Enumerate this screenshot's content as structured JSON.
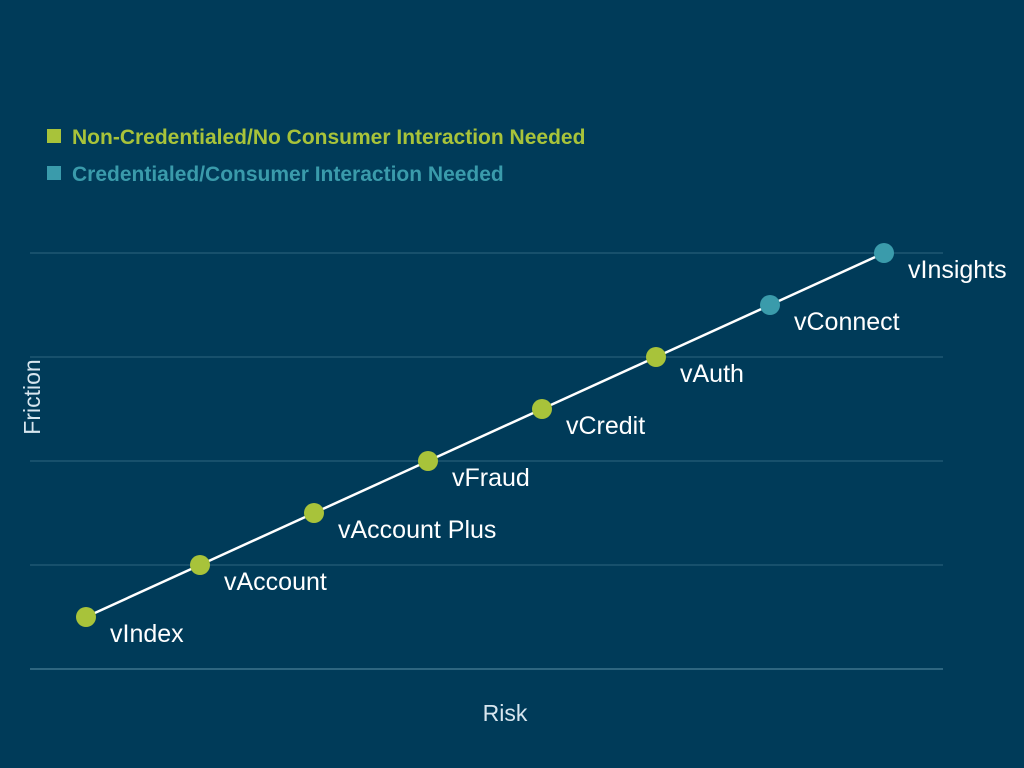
{
  "chart_data": {
    "type": "line",
    "xlabel": "Risk",
    "ylabel": "Friction",
    "grid": true,
    "legend_position": "top-left",
    "colors": {
      "background": "#003b59",
      "grid": "#2e6680",
      "line": "#ffffff",
      "non_credentialed": "#a8c33a",
      "credentialed": "#3a9bab",
      "label": "#ffffff",
      "axis_label": "#d8e6ef"
    },
    "legend": [
      {
        "name": "Non-Credentialed/No Consumer Interaction Needed",
        "color": "#a8c33a"
      },
      {
        "name": "Credentialed/Consumer Interaction Needed",
        "color": "#3a9bab"
      }
    ],
    "xlim": [
      0,
      9
    ],
    "ylim": [
      0,
      4
    ],
    "points": [
      {
        "label": "vIndex",
        "x": 0.6,
        "y": 0.5,
        "series": "Non-Credentialed/No Consumer Interaction Needed"
      },
      {
        "label": "vAccount",
        "x": 1.8,
        "y": 1.0,
        "series": "Non-Credentialed/No Consumer Interaction Needed"
      },
      {
        "label": "vAccount Plus",
        "x": 3.0,
        "y": 1.5,
        "series": "Non-Credentialed/No Consumer Interaction Needed"
      },
      {
        "label": "vFraud",
        "x": 4.2,
        "y": 2.0,
        "series": "Non-Credentialed/No Consumer Interaction Needed"
      },
      {
        "label": "vCredit",
        "x": 5.4,
        "y": 2.5,
        "series": "Non-Credentialed/No Consumer Interaction Needed"
      },
      {
        "label": "vAuth",
        "x": 6.6,
        "y": 3.0,
        "series": "Non-Credentialed/No Consumer Interaction Needed"
      },
      {
        "label": "vConnect",
        "x": 7.8,
        "y": 3.5,
        "series": "Credentialed/Consumer Interaction Needed"
      },
      {
        "label": "vInsights",
        "x": 9.0,
        "y": 4.0,
        "series": "Credentialed/Consumer Interaction Needed"
      }
    ]
  }
}
